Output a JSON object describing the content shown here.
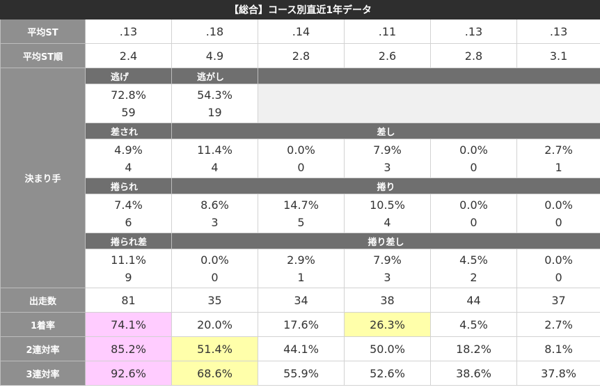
{
  "title": "【総合】コース別直近1年データ",
  "labels": {
    "avg_st": "平均ST",
    "avg_st_rank": "平均ST順",
    "kimarite": "決まり手",
    "starts": "出走数",
    "win_rate": "1着率",
    "quinella_rate": "2連対率",
    "trio_rate": "3連対率"
  },
  "sub_headers": {
    "nige": "逃げ",
    "nigashi": "逃がし",
    "sasare": "差され",
    "sashi": "差し",
    "makurare": "捲られ",
    "makuri": "捲り",
    "makurare_sashi": "捲られ差",
    "makuri_sashi": "捲り差し"
  },
  "avg_st": [
    ".13",
    ".18",
    ".14",
    ".11",
    ".13",
    ".13"
  ],
  "avg_st_rank": [
    "2.4",
    "4.9",
    "2.8",
    "2.6",
    "2.8",
    "3.1"
  ],
  "nige": {
    "pct": "72.8%",
    "count": "59"
  },
  "nigashi": {
    "pct": "54.3%",
    "count": "19"
  },
  "sashi_row": [
    {
      "pct": "4.9%",
      "count": "4"
    },
    {
      "pct": "11.4%",
      "count": "4"
    },
    {
      "pct": "0.0%",
      "count": "0"
    },
    {
      "pct": "7.9%",
      "count": "3"
    },
    {
      "pct": "0.0%",
      "count": "0"
    },
    {
      "pct": "2.7%",
      "count": "1"
    }
  ],
  "makuri_row": [
    {
      "pct": "7.4%",
      "count": "6"
    },
    {
      "pct": "8.6%",
      "count": "3"
    },
    {
      "pct": "14.7%",
      "count": "5"
    },
    {
      "pct": "10.5%",
      "count": "4"
    },
    {
      "pct": "0.0%",
      "count": "0"
    },
    {
      "pct": "0.0%",
      "count": "0"
    }
  ],
  "makuri_sashi_row": [
    {
      "pct": "11.1%",
      "count": "9"
    },
    {
      "pct": "0.0%",
      "count": "0"
    },
    {
      "pct": "2.9%",
      "count": "1"
    },
    {
      "pct": "7.9%",
      "count": "3"
    },
    {
      "pct": "4.5%",
      "count": "2"
    },
    {
      "pct": "0.0%",
      "count": "0"
    }
  ],
  "starts": [
    "81",
    "35",
    "34",
    "38",
    "44",
    "37"
  ],
  "win_rate": [
    "74.1%",
    "20.0%",
    "17.6%",
    "26.3%",
    "4.5%",
    "2.7%"
  ],
  "quinella_rate": [
    "85.2%",
    "51.4%",
    "44.1%",
    "50.0%",
    "18.2%",
    "8.1%"
  ],
  "trio_rate": [
    "92.6%",
    "68.6%",
    "55.9%",
    "52.6%",
    "38.6%",
    "37.8%"
  ],
  "highlight_colors": {
    "pink": "#ffccff",
    "yellow": "#ffffaa"
  }
}
